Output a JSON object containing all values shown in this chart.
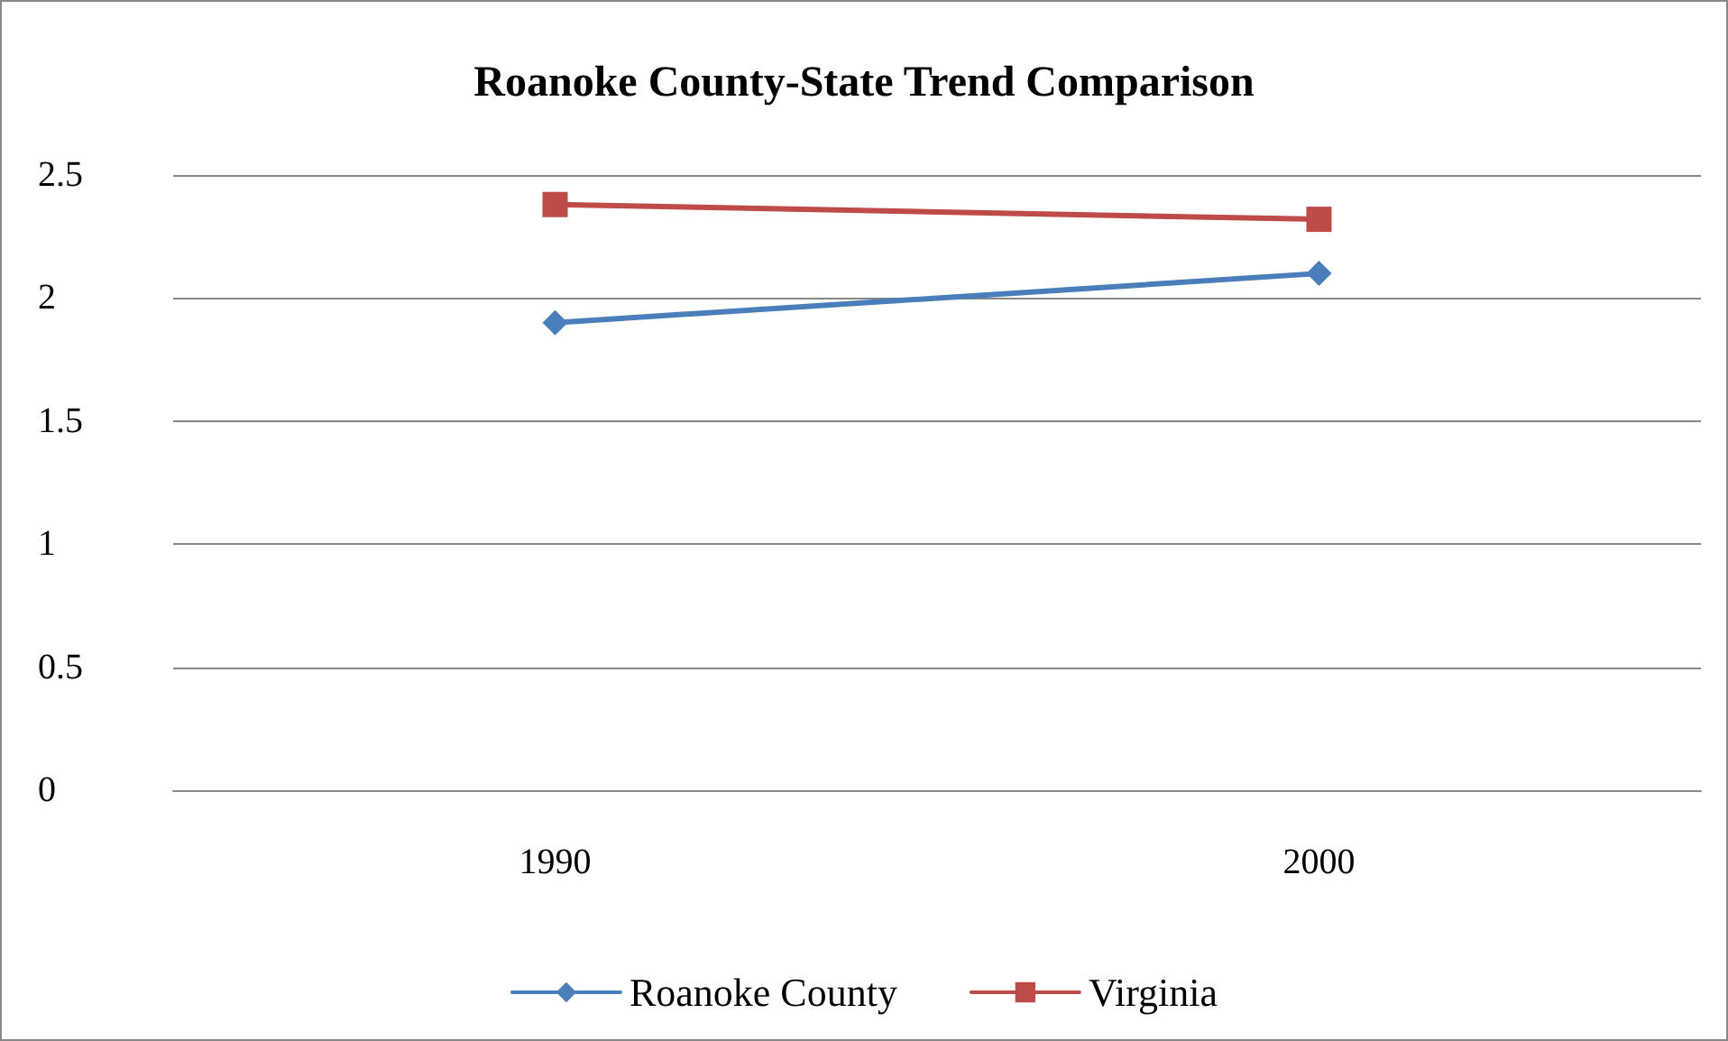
{
  "chart_data": {
    "type": "line",
    "title": "Roanoke County-State Trend Comparison",
    "categories": [
      "1990",
      "2000"
    ],
    "series": [
      {
        "name": "Roanoke County",
        "color": "#4a7ebb",
        "values": [
          1.9,
          2.1
        ],
        "marker": "diamond"
      },
      {
        "name": "Virginia",
        "color": "#be4b48",
        "values": [
          2.38,
          2.32
        ],
        "marker": "square"
      }
    ],
    "ylim": [
      0,
      2.5
    ],
    "yticks": [
      0,
      0.5,
      1,
      1.5,
      2,
      2.5
    ],
    "grid": "y",
    "legend": "bottom",
    "line_style": "solid"
  }
}
